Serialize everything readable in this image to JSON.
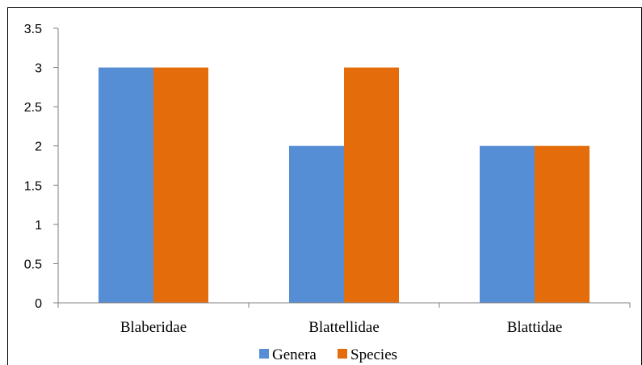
{
  "chart_data": {
    "type": "bar",
    "categories": [
      "Blaberidae",
      "Blattellidae",
      "Blattidae"
    ],
    "series": [
      {
        "name": "Genera",
        "values": [
          3,
          2,
          2
        ],
        "color": "#558ED5"
      },
      {
        "name": "Species",
        "values": [
          3,
          3,
          2
        ],
        "color": "#E46C0A"
      }
    ],
    "ylim": [
      0,
      3.5
    ],
    "yticks": [
      "0",
      "0.5",
      "1",
      "1.5",
      "2",
      "2.5",
      "3",
      "3.5"
    ],
    "grid": false,
    "legend_position": "bottom"
  }
}
